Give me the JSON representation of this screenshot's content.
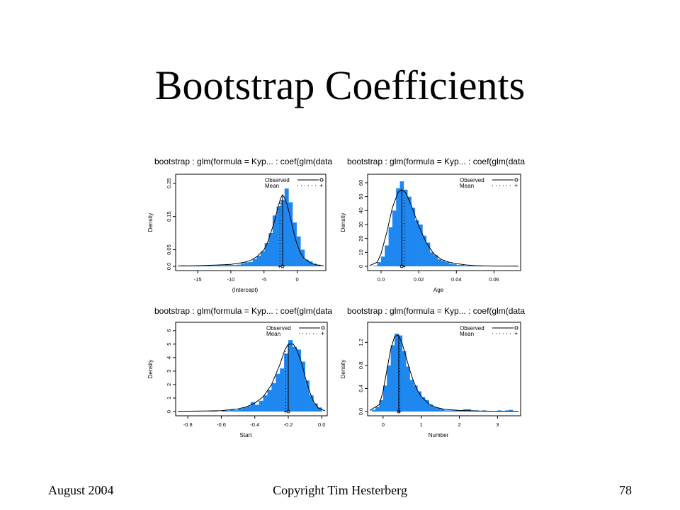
{
  "slide": {
    "title": "Bootstrap Coefficients",
    "footer_left": "August 2004",
    "footer_center": "Copyright Tim Hesterberg",
    "footer_right": "78"
  },
  "colors": {
    "bar": "#1e88f0",
    "axis": "#000000",
    "line": "#000000"
  },
  "chart_data": [
    {
      "type": "bar",
      "panel_title": "bootstrap : glm(formula = Kyp... : coef(glm(data",
      "xlabel": "(Intercept)",
      "ylabel": "Density",
      "xlim": [
        -18,
        4
      ],
      "ylim": [
        0,
        0.26
      ],
      "xticks": [
        -15,
        -10,
        -5,
        0
      ],
      "yticks": [
        0.0,
        0.05,
        0.15,
        0.25
      ],
      "ytick_labels": [
        "0.0",
        "0.05",
        "0.15",
        "0.25"
      ],
      "bin_width": 0.6,
      "bins_start": [
        -17.5,
        -16.9,
        -16.3,
        -15.7,
        -15.1,
        -14.5,
        -13.9,
        -13.3,
        -12.7,
        -12.1,
        -11.5,
        -10.9,
        -10.3,
        -9.7,
        -9.1,
        -8.5,
        -7.9,
        -7.3,
        -6.7,
        -6.1,
        -5.5,
        -4.9,
        -4.3,
        -3.7,
        -3.1,
        -2.5,
        -1.9,
        -1.3,
        -0.7,
        -0.1,
        0.5,
        1.1,
        1.7,
        2.3,
        2.9
      ],
      "values": [
        0.003,
        0.002,
        0.002,
        0.002,
        0.003,
        0.003,
        0.002,
        0.003,
        0.002,
        0.003,
        0.003,
        0.004,
        0.004,
        0.004,
        0.005,
        0.009,
        0.012,
        0.013,
        0.022,
        0.032,
        0.045,
        0.07,
        0.1,
        0.153,
        0.18,
        0.2,
        0.234,
        0.193,
        0.132,
        0.09,
        0.05,
        0.02,
        0.015,
        0.008,
        0.005
      ],
      "density_curve": {
        "x": [
          -18,
          -15,
          -12,
          -10,
          -8,
          -7,
          -6,
          -5,
          -4.5,
          -4,
          -3.5,
          -3,
          -2.5,
          -2.2,
          -2,
          -1.5,
          -1,
          -0.5,
          0,
          0.5,
          1,
          2,
          3,
          4
        ],
        "y": [
          0.001,
          0.002,
          0.004,
          0.006,
          0.012,
          0.018,
          0.03,
          0.05,
          0.07,
          0.1,
          0.13,
          0.17,
          0.205,
          0.215,
          0.21,
          0.185,
          0.145,
          0.1,
          0.065,
          0.04,
          0.025,
          0.01,
          0.004,
          0.002
        ]
      },
      "observed": -2.2,
      "mean": -2.6,
      "legend": [
        {
          "label": "Observed",
          "style": "solid",
          "marker": "o"
        },
        {
          "label": "Mean",
          "style": "dotted",
          "marker": "+"
        }
      ],
      "legend_position": "top-right"
    },
    {
      "type": "bar",
      "panel_title": "bootstrap : glm(formula = Kyp... : coef(glm(data",
      "xlabel": "Age",
      "ylabel": "Density",
      "xlim": [
        -0.006,
        0.073
      ],
      "ylim": [
        0,
        62
      ],
      "xticks": [
        0.0,
        0.02,
        0.04,
        0.06
      ],
      "xtick_labels": [
        "0.0",
        "0.02",
        "0.04",
        "0.06"
      ],
      "yticks": [
        0,
        10,
        20,
        30,
        40,
        50,
        60
      ],
      "bin_width": 0.002,
      "bins_start": [
        -0.004,
        -0.002,
        0.0,
        0.002,
        0.004,
        0.006,
        0.008,
        0.01,
        0.012,
        0.014,
        0.016,
        0.018,
        0.02,
        0.022,
        0.024,
        0.026,
        0.028,
        0.03,
        0.032,
        0.034,
        0.036,
        0.038,
        0.04,
        0.042,
        0.044,
        0.046,
        0.048,
        0.05,
        0.052,
        0.054,
        0.056,
        0.058,
        0.06,
        0.062,
        0.064,
        0.066,
        0.068,
        0.07
      ],
      "values": [
        0.5,
        3,
        7,
        15,
        28,
        40,
        56,
        61,
        55,
        50,
        42,
        33,
        30,
        22,
        17,
        10,
        8,
        5,
        4,
        3,
        2,
        1.5,
        1,
        1,
        0.5,
        0.5,
        0.5,
        0.3,
        0.3,
        0,
        0.3,
        0,
        0,
        0.3,
        0,
        0,
        0,
        0.5
      ],
      "density_curve": {
        "x": [
          -0.006,
          -0.002,
          0.0,
          0.003,
          0.006,
          0.009,
          0.011,
          0.013,
          0.016,
          0.02,
          0.024,
          0.028,
          0.032,
          0.036,
          0.04,
          0.045,
          0.05,
          0.06,
          0.073
        ],
        "y": [
          0.5,
          3,
          9,
          24,
          42,
          53,
          55,
          53,
          44,
          29,
          17,
          9,
          5,
          3,
          2,
          1,
          0.5,
          0.2,
          0.1
        ]
      },
      "observed": 0.011,
      "mean": 0.0125,
      "legend": [
        {
          "label": "Observed",
          "style": "solid",
          "marker": "o"
        },
        {
          "label": "Mean",
          "style": "dotted",
          "marker": "+"
        }
      ],
      "legend_position": "top-right"
    },
    {
      "type": "bar",
      "panel_title": "bootstrap : glm(formula = Kyp... : coef(glm(data",
      "xlabel": "Start",
      "ylabel": "Density",
      "xlim": [
        -0.86,
        0.02
      ],
      "ylim": [
        0,
        6.2
      ],
      "xticks": [
        -0.8,
        -0.6,
        -0.4,
        -0.2,
        0.0
      ],
      "xtick_labels": [
        "-0.8",
        "-0.6",
        "-0.4",
        "-0.2",
        "0.0"
      ],
      "yticks": [
        0,
        1,
        2,
        3,
        4,
        5,
        6
      ],
      "bin_width": 0.025,
      "bins_start": [
        -0.85,
        -0.825,
        -0.8,
        -0.775,
        -0.75,
        -0.725,
        -0.7,
        -0.675,
        -0.65,
        -0.625,
        -0.6,
        -0.575,
        -0.55,
        -0.525,
        -0.5,
        -0.475,
        -0.45,
        -0.425,
        -0.4,
        -0.375,
        -0.35,
        -0.325,
        -0.3,
        -0.275,
        -0.25,
        -0.225,
        -0.2,
        -0.175,
        -0.15,
        -0.125,
        -0.1,
        -0.075,
        -0.05,
        -0.025
      ],
      "values": [
        0.05,
        0.05,
        0,
        0.03,
        0.04,
        0,
        0,
        0.04,
        0.04,
        0,
        0.07,
        0.07,
        0.15,
        0.1,
        0.2,
        0.3,
        0.4,
        0.7,
        0.5,
        0.8,
        1.2,
        1.6,
        2.1,
        2.8,
        3.2,
        4.3,
        5.3,
        4.8,
        4.6,
        3.7,
        2.3,
        1.2,
        0.6,
        0.3
      ],
      "density_curve": {
        "x": [
          -0.86,
          -0.7,
          -0.6,
          -0.5,
          -0.45,
          -0.4,
          -0.35,
          -0.3,
          -0.25,
          -0.22,
          -0.2,
          -0.17,
          -0.15,
          -0.12,
          -0.1,
          -0.07,
          -0.05,
          -0.02,
          0.02
        ],
        "y": [
          0.02,
          0.04,
          0.07,
          0.2,
          0.35,
          0.62,
          1.1,
          2.0,
          3.5,
          4.6,
          5.0,
          5.0,
          4.6,
          3.6,
          2.6,
          1.4,
          0.75,
          0.25,
          0.05
        ]
      },
      "observed": -0.2,
      "mean": -0.215,
      "legend": [
        {
          "label": "Observed",
          "style": "solid",
          "marker": "o"
        },
        {
          "label": "Mean",
          "style": "dotted",
          "marker": "+"
        }
      ],
      "legend_position": "top-right"
    },
    {
      "type": "bar",
      "panel_title": "bootstrap : glm(formula = Kyp... : coef(glm(data",
      "xlabel": "Number",
      "ylabel": "Density",
      "xlim": [
        -0.35,
        3.55
      ],
      "ylim": [
        0,
        1.45
      ],
      "xticks": [
        0,
        1,
        2,
        3
      ],
      "yticks": [
        0.0,
        0.4,
        0.8,
        1.2
      ],
      "ytick_labels": [
        "0.0",
        "0.4",
        "0.8",
        "1.2"
      ],
      "bin_width": 0.1,
      "bins_start": [
        -0.3,
        -0.2,
        -0.1,
        0.0,
        0.1,
        0.2,
        0.3,
        0.4,
        0.5,
        0.6,
        0.7,
        0.8,
        0.9,
        1.0,
        1.1,
        1.2,
        1.3,
        1.4,
        1.5,
        1.6,
        1.7,
        1.8,
        1.9,
        2.0,
        2.1,
        2.2,
        2.3,
        2.4,
        2.5,
        2.6,
        2.7,
        2.8,
        2.9,
        3.0,
        3.1,
        3.2,
        3.3
      ],
      "values": [
        0.03,
        0.08,
        0.2,
        0.45,
        0.8,
        1.15,
        1.35,
        1.32,
        1.05,
        0.78,
        0.55,
        0.45,
        0.35,
        0.25,
        0.2,
        0.12,
        0.08,
        0.06,
        0.04,
        0.02,
        0.02,
        0.02,
        0.02,
        0.02,
        0.04,
        0.04,
        0.02,
        0.02,
        0,
        0.02,
        0,
        0,
        0,
        0.02,
        0,
        0.02,
        0.03
      ],
      "density_curve": {
        "x": [
          -0.35,
          -0.1,
          0.0,
          0.1,
          0.2,
          0.3,
          0.4,
          0.5,
          0.6,
          0.7,
          0.8,
          0.9,
          1.0,
          1.2,
          1.4,
          1.6,
          1.8,
          2.0,
          2.5,
          3.0,
          3.55
        ],
        "y": [
          0.02,
          0.12,
          0.35,
          0.72,
          1.08,
          1.3,
          1.33,
          1.18,
          0.95,
          0.72,
          0.52,
          0.37,
          0.26,
          0.13,
          0.07,
          0.04,
          0.03,
          0.02,
          0.01,
          0.005,
          0.003
        ]
      },
      "observed": 0.41,
      "mean": 0.44,
      "legend": [
        {
          "label": "Observed",
          "style": "solid",
          "marker": "o"
        },
        {
          "label": "Mean",
          "style": "dotted",
          "marker": "+"
        }
      ],
      "legend_position": "top-right"
    }
  ]
}
